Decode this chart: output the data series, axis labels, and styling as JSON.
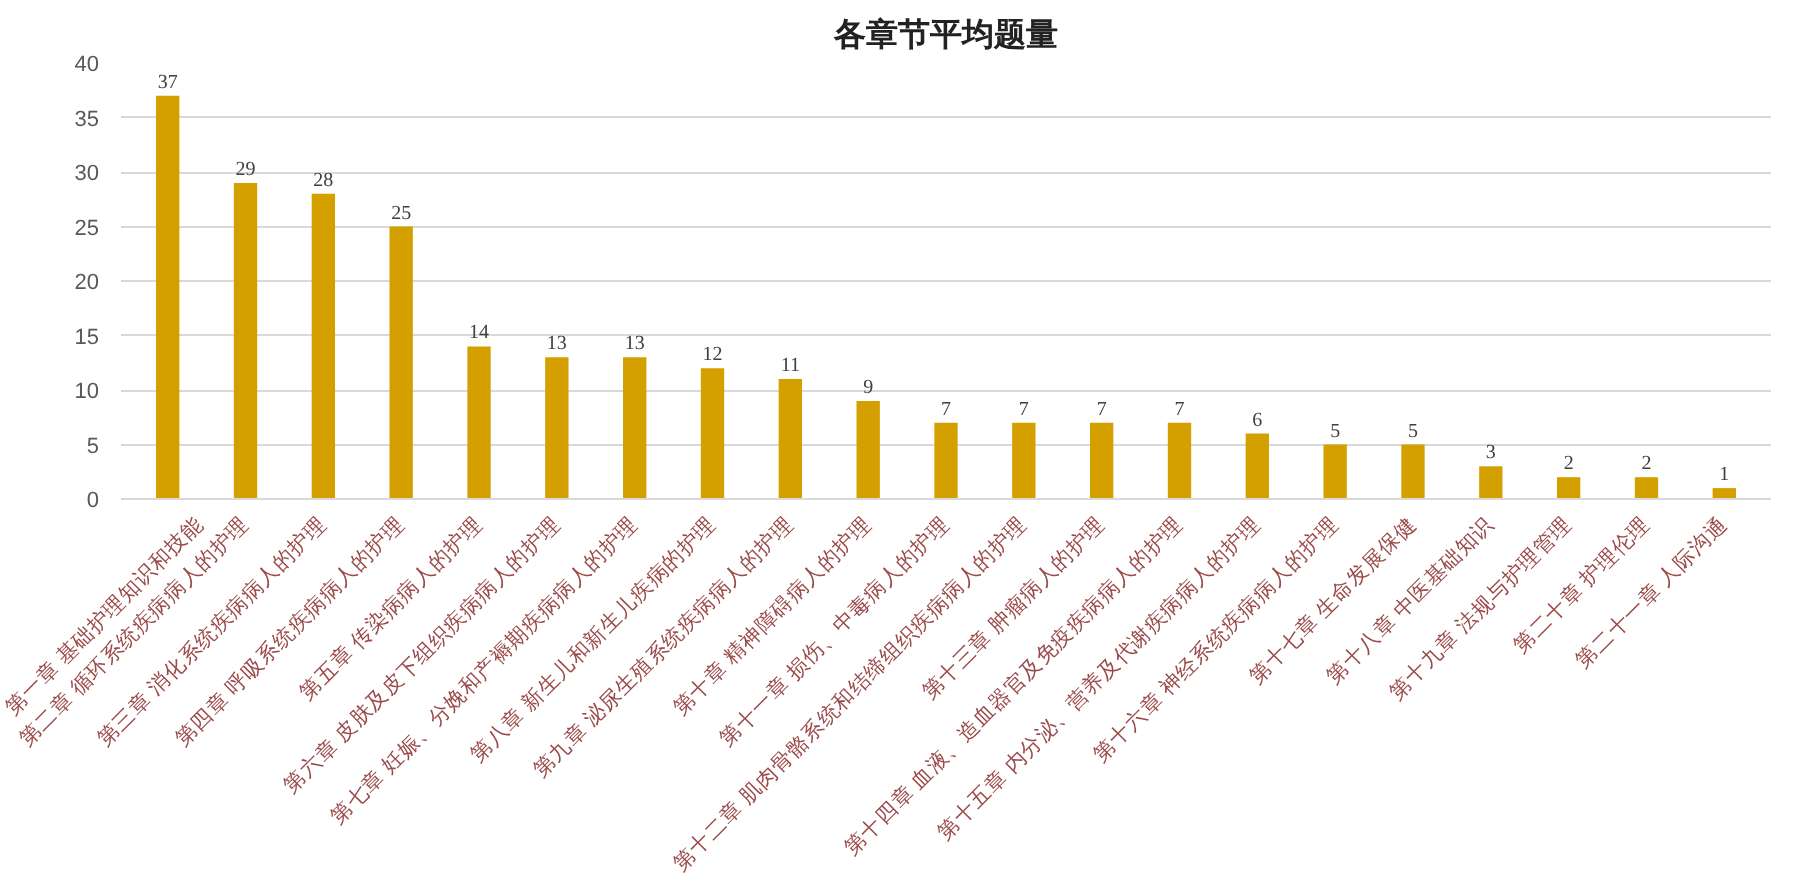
{
  "chart_data": {
    "type": "bar",
    "title": "各章节平均题量",
    "categories": [
      "第一章 基础护理知识和技能",
      "第二章 循环系统疾病病人的护理",
      "第三章 消化系统疾病病人的护理",
      "第四章 呼吸系统疾病病人的护理",
      "第五章 传染病病人的护理",
      "第六章 皮肤及皮下组织疾病病人的护理",
      "第七章 妊娠、分娩和产褥期疾病病人的护理",
      "第八章 新生儿和新生儿疾病的护理",
      "第九章 泌尿生殖系统疾病病人的护理",
      "第十章 精神障碍病人的护理",
      "第十一章 损伤、中毒病人的护理",
      "第十二章 肌肉骨骼系统和结缔组织疾病病人的护理",
      "第十三章 肿瘤病人的护理",
      "第十四章 血液、造血器官及免疫疾病病人的护理",
      "第十五章 内分泌、营养及代谢疾病病人的护理",
      "第十六章 神经系统疾病病人的护理",
      "第十七章 生命发展保健",
      "第十八章 中医基础知识",
      "第十九章 法规与护理管理",
      "第二十章 护理伦理",
      "第二十一章 人际沟通"
    ],
    "values": [
      37,
      29,
      28,
      25,
      14,
      13,
      13,
      12,
      11,
      9,
      7,
      7,
      7,
      7,
      6,
      5,
      5,
      3,
      2,
      2,
      1
    ],
    "color": "#d4a000",
    "ylim": [
      0,
      40
    ],
    "yticks": [
      0,
      5,
      10,
      15,
      20,
      25,
      30,
      35,
      40
    ],
    "grid": "y",
    "data_labels": true
  }
}
